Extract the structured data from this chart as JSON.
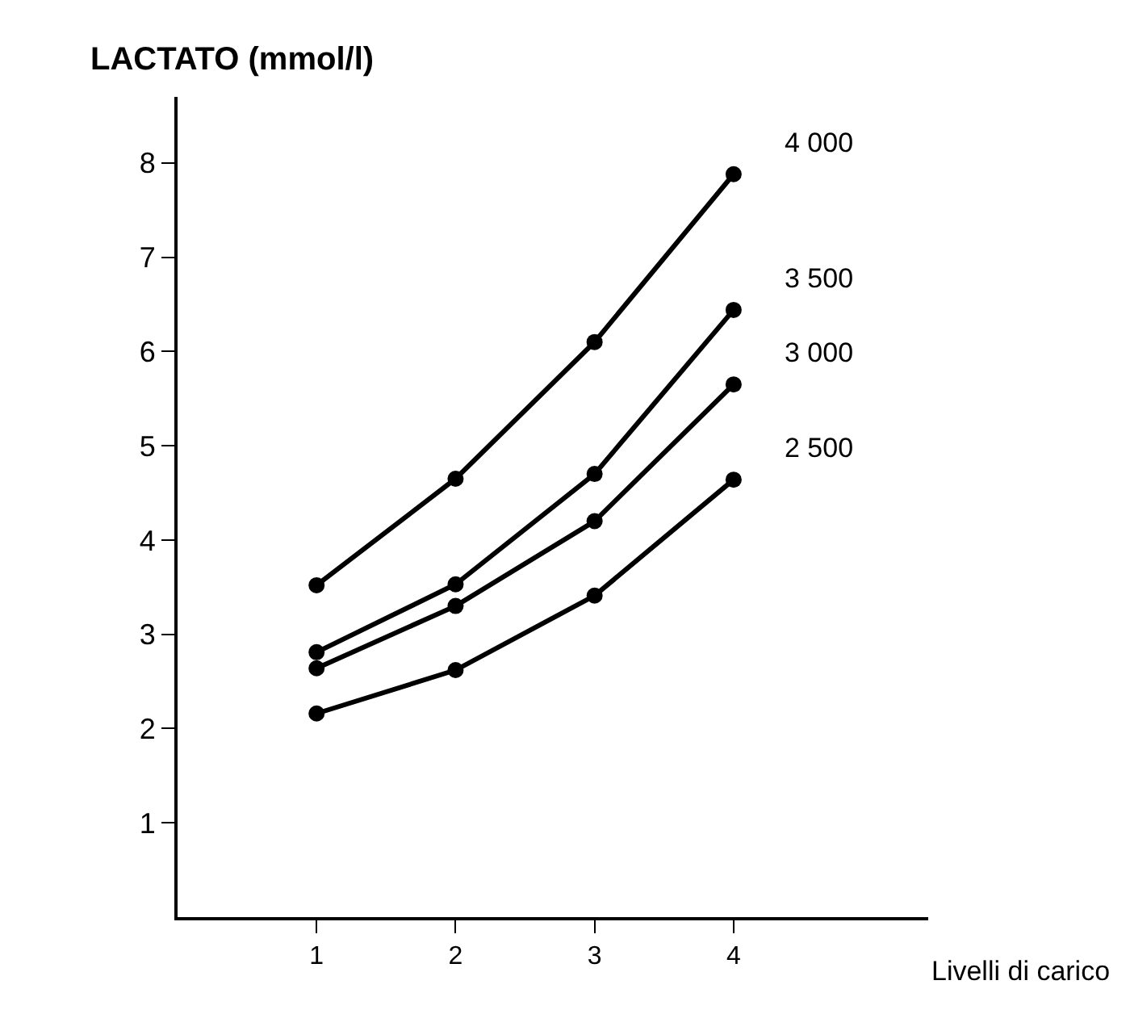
{
  "chart_data": {
    "type": "line",
    "ylabel": "LACTATO (mmol/l)",
    "xlabel": "Livelli di carico",
    "x": [
      1,
      2,
      3,
      4
    ],
    "series": [
      {
        "name": "4 000",
        "color": "#000000",
        "values": [
          3.52,
          4.65,
          6.1,
          7.88
        ]
      },
      {
        "name": "3 500",
        "color": "#000000",
        "values": [
          2.81,
          3.53,
          4.7,
          6.44
        ]
      },
      {
        "name": "3 000",
        "color": "#000000",
        "values": [
          2.64,
          3.3,
          4.2,
          5.65
        ]
      },
      {
        "name": "2 500",
        "color": "#000000",
        "values": [
          2.16,
          2.62,
          3.41,
          4.64
        ]
      }
    ],
    "xlim": [
      0,
      5.4
    ],
    "xticks": [
      1,
      2,
      3,
      4
    ],
    "ylim": [
      0,
      8.7
    ],
    "yticks": [
      1,
      2,
      3,
      4,
      5,
      6,
      7,
      8
    ],
    "marker": "circle",
    "line_style": "solid",
    "legend": false
  }
}
